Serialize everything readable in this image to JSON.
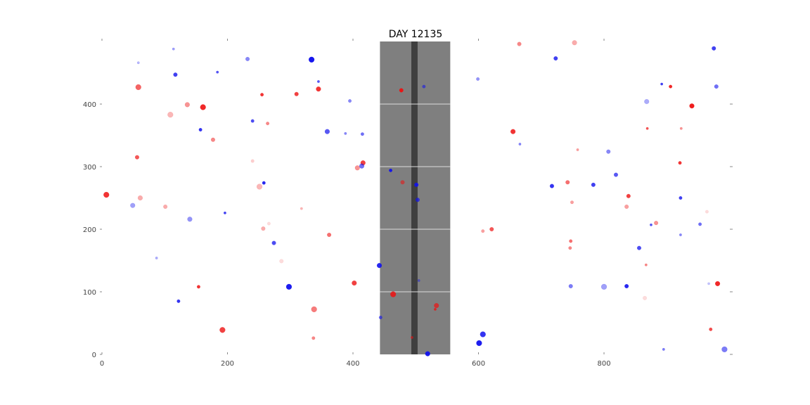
{
  "chart_data": {
    "type": "scatter",
    "title": "DAY 12135",
    "xlabel": "",
    "ylabel": "",
    "xlim": [
      0,
      1005
    ],
    "ylim": [
      0,
      500
    ],
    "grid": false,
    "xticks": [
      0,
      200,
      400,
      600,
      800
    ],
    "yticks": [
      0,
      100,
      200,
      300,
      400
    ],
    "colors": {
      "red": "#ee1111",
      "blue": "#1111ee",
      "band": "#7f7f7f",
      "band_line": "#3f3f3f",
      "band_grid": "#dddddd"
    },
    "band": {
      "x_range": [
        443,
        555
      ],
      "line_x": [
        493,
        503
      ],
      "grid_y": [
        100,
        200,
        300,
        400
      ]
    },
    "series": [
      {
        "color": "red",
        "points": [
          [
            7,
            255,
            6,
            0.85
          ],
          [
            58,
            427,
            6,
            0.65
          ],
          [
            61,
            250,
            5,
            0.35
          ],
          [
            56,
            315,
            4,
            0.7
          ],
          [
            109,
            383,
            6,
            0.3
          ],
          [
            101,
            236,
            4,
            0.35
          ],
          [
            136,
            399,
            5,
            0.45
          ],
          [
            161,
            395,
            6,
            0.9
          ],
          [
            177,
            343,
            4,
            0.5
          ],
          [
            154,
            108,
            3,
            0.85
          ],
          [
            192,
            39,
            6,
            0.8
          ],
          [
            240,
            309,
            3,
            0.2
          ],
          [
            251,
            268,
            6,
            0.3
          ],
          [
            257,
            201,
            4,
            0.35
          ],
          [
            255,
            415,
            3,
            0.85
          ],
          [
            264,
            369,
            3,
            0.5
          ],
          [
            266,
            209,
            3,
            0.15
          ],
          [
            286,
            149,
            4,
            0.15
          ],
          [
            310,
            416,
            4,
            0.8
          ],
          [
            318,
            233,
            2,
            0.3
          ],
          [
            338,
            72,
            6,
            0.55
          ],
          [
            337,
            26,
            3,
            0.5
          ],
          [
            345,
            424,
            5,
            0.85
          ],
          [
            362,
            191,
            4,
            0.6
          ],
          [
            402,
            114,
            5,
            0.8
          ],
          [
            407,
            298,
            5,
            0.45
          ],
          [
            416,
            306,
            5,
            0.8
          ],
          [
            464,
            96,
            6,
            0.85
          ],
          [
            477,
            422,
            4,
            0.95
          ],
          [
            479,
            275,
            4,
            0.55
          ],
          [
            494,
            27,
            2,
            0.6
          ],
          [
            533,
            78,
            5,
            0.7
          ],
          [
            531,
            72,
            2,
            0.8
          ],
          [
            665,
            496,
            4,
            0.5
          ],
          [
            655,
            356,
            5,
            0.85
          ],
          [
            607,
            197,
            3,
            0.4
          ],
          [
            621,
            200,
            4,
            0.7
          ],
          [
            742,
            275,
            4,
            0.6
          ],
          [
            747,
            181,
            3,
            0.6
          ],
          [
            746,
            170,
            3,
            0.5
          ],
          [
            749,
            243,
            3,
            0.4
          ],
          [
            758,
            327,
            2,
            0.4
          ],
          [
            753,
            498,
            5,
            0.35
          ],
          [
            839,
            253,
            4,
            0.8
          ],
          [
            836,
            236,
            4,
            0.4
          ],
          [
            867,
            143,
            2,
            0.5
          ],
          [
            869,
            361,
            2,
            0.7
          ],
          [
            883,
            210,
            4,
            0.45
          ],
          [
            865,
            90,
            4,
            0.15
          ],
          [
            906,
            428,
            3,
            0.9
          ],
          [
            921,
            306,
            3,
            0.85
          ],
          [
            923,
            361,
            2,
            0.45
          ],
          [
            940,
            397,
            5,
            0.95
          ],
          [
            970,
            40,
            3,
            0.75
          ],
          [
            981,
            113,
            5,
            0.9
          ],
          [
            964,
            228,
            3,
            0.15
          ]
        ]
      },
      {
        "color": "blue",
        "points": [
          [
            114,
            488,
            2,
            0.4
          ],
          [
            58,
            466,
            2,
            0.3
          ],
          [
            117,
            447,
            4,
            0.8
          ],
          [
            49,
            238,
            5,
            0.4
          ],
          [
            87,
            154,
            2,
            0.35
          ],
          [
            140,
            216,
            5,
            0.45
          ],
          [
            122,
            85,
            3,
            0.85
          ],
          [
            157,
            359,
            3,
            0.85
          ],
          [
            184,
            451,
            2,
            0.7
          ],
          [
            196,
            226,
            2,
            0.8
          ],
          [
            232,
            472,
            4,
            0.5
          ],
          [
            240,
            373,
            3,
            0.75
          ],
          [
            258,
            274,
            3,
            0.9
          ],
          [
            274,
            178,
            4,
            0.75
          ],
          [
            298,
            108,
            6,
            0.95
          ],
          [
            334,
            471,
            6,
            0.98
          ],
          [
            345,
            436,
            2,
            0.7
          ],
          [
            359,
            356,
            5,
            0.7
          ],
          [
            395,
            405,
            3,
            0.5
          ],
          [
            388,
            353,
            2,
            0.5
          ],
          [
            415,
            352,
            3,
            0.6
          ],
          [
            414,
            301,
            5,
            0.6
          ],
          [
            442,
            142,
            5,
            0.9
          ],
          [
            444,
            59,
            3,
            0.6
          ],
          [
            460,
            294,
            3,
            0.95
          ],
          [
            501,
            271,
            4,
            0.9
          ],
          [
            503,
            247,
            4,
            0.7
          ],
          [
            513,
            428,
            3,
            0.55
          ],
          [
            505,
            118,
            2,
            0.4
          ],
          [
            519,
            1,
            5,
            0.95
          ],
          [
            607,
            32,
            6,
            0.85
          ],
          [
            601,
            18,
            6,
            0.95
          ],
          [
            599,
            440,
            3,
            0.45
          ],
          [
            666,
            336,
            2,
            0.5
          ],
          [
            723,
            473,
            4,
            0.8
          ],
          [
            717,
            269,
            4,
            0.85
          ],
          [
            747,
            109,
            4,
            0.55
          ],
          [
            783,
            271,
            4,
            0.8
          ],
          [
            807,
            324,
            4,
            0.5
          ],
          [
            819,
            287,
            4,
            0.7
          ],
          [
            800,
            108,
            6,
            0.4
          ],
          [
            836,
            109,
            4,
            0.9
          ],
          [
            856,
            170,
            4,
            0.75
          ],
          [
            868,
            404,
            5,
            0.35
          ],
          [
            875,
            207,
            2,
            0.7
          ],
          [
            892,
            432,
            2,
            0.8
          ],
          [
            922,
            250,
            3,
            0.8
          ],
          [
            922,
            191,
            2,
            0.5
          ],
          [
            895,
            8,
            2,
            0.55
          ],
          [
            953,
            208,
            3,
            0.6
          ],
          [
            975,
            489,
            4,
            0.8
          ],
          [
            979,
            428,
            4,
            0.6
          ],
          [
            992,
            8,
            6,
            0.55
          ],
          [
            967,
            113,
            2,
            0.25
          ]
        ]
      }
    ]
  }
}
